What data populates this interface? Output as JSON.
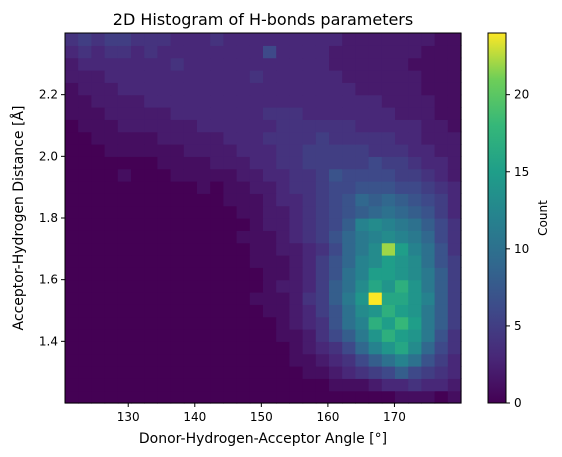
{
  "chart_data": {
    "type": "heatmap",
    "title": "2D Histogram of H-bonds parameters",
    "xlabel": "Donor-Hydrogen-Acceptor Angle [°]",
    "ylabel": "Acceptor-Hydrogen Distance [Å]",
    "xlim": [
      120.5,
      180
    ],
    "ylim": [
      1.2,
      2.4
    ],
    "x_ticks": [
      "130",
      "140",
      "150",
      "160",
      "170"
    ],
    "x_tick_values": [
      130,
      140,
      150,
      160,
      170
    ],
    "y_ticks": [
      "1.4",
      "1.6",
      "1.8",
      "2.0",
      "2.2"
    ],
    "y_tick_values": [
      1.4,
      1.6,
      1.8,
      2.0,
      2.2
    ],
    "colorbar": {
      "label": "Count",
      "range": [
        0,
        24
      ],
      "ticks": [
        "0",
        "5",
        "10",
        "15",
        "20"
      ],
      "tick_values": [
        0,
        5,
        10,
        15,
        20
      ],
      "colormap": "viridis"
    },
    "grid": false,
    "bins_x": 30,
    "bins_y": 30,
    "counts": [
      [
        0,
        0,
        0,
        0,
        0,
        0,
        0,
        0,
        0,
        0,
        0,
        0,
        0,
        0,
        0,
        0,
        0,
        0,
        0,
        0,
        0,
        0,
        0,
        0,
        0,
        1,
        1,
        1,
        0,
        1
      ],
      [
        0,
        0,
        0,
        0,
        0,
        0,
        0,
        0,
        0,
        0,
        0,
        0,
        0,
        0,
        0,
        0,
        0,
        0,
        0,
        0,
        1,
        1,
        1,
        2,
        3,
        3,
        4,
        3,
        3,
        2
      ],
      [
        0,
        0,
        0,
        0,
        0,
        0,
        0,
        0,
        0,
        0,
        0,
        0,
        0,
        0,
        0,
        0,
        0,
        0,
        1,
        1,
        2,
        3,
        4,
        5,
        6,
        8,
        6,
        5,
        4,
        3
      ],
      [
        0,
        0,
        0,
        0,
        0,
        0,
        0,
        0,
        0,
        0,
        0,
        0,
        0,
        0,
        0,
        0,
        0,
        1,
        1,
        2,
        3,
        4,
        6,
        8,
        10,
        12,
        10,
        7,
        5,
        3
      ],
      [
        0,
        0,
        0,
        0,
        0,
        0,
        0,
        0,
        0,
        0,
        0,
        0,
        0,
        0,
        0,
        0,
        0,
        1,
        2,
        3,
        4,
        6,
        9,
        12,
        14,
        16,
        13,
        9,
        6,
        4
      ],
      [
        0,
        0,
        0,
        0,
        0,
        0,
        0,
        0,
        0,
        0,
        0,
        0,
        0,
        0,
        0,
        0,
        1,
        1,
        2,
        4,
        6,
        8,
        11,
        14,
        17,
        15,
        14,
        11,
        7,
        4
      ],
      [
        0,
        0,
        0,
        0,
        0,
        0,
        0,
        0,
        0,
        0,
        0,
        0,
        0,
        0,
        0,
        0,
        1,
        2,
        3,
        4,
        7,
        10,
        12,
        17,
        15,
        18,
        15,
        11,
        8,
        5
      ],
      [
        0,
        0,
        0,
        0,
        0,
        0,
        0,
        0,
        0,
        0,
        0,
        0,
        0,
        0,
        0,
        1,
        1,
        2,
        3,
        5,
        7,
        10,
        13,
        14,
        17,
        15,
        14,
        11,
        8,
        5
      ],
      [
        0,
        0,
        0,
        0,
        0,
        0,
        0,
        0,
        0,
        0,
        0,
        0,
        0,
        0,
        1,
        1,
        1,
        2,
        4,
        5,
        8,
        11,
        14,
        24,
        16,
        16,
        14,
        12,
        8,
        5
      ],
      [
        0,
        0,
        0,
        0,
        0,
        0,
        0,
        0,
        0,
        0,
        0,
        0,
        0,
        0,
        0,
        1,
        2,
        2,
        3,
        5,
        8,
        10,
        13,
        16,
        14,
        17,
        14,
        11,
        8,
        5
      ],
      [
        0,
        0,
        0,
        0,
        0,
        0,
        0,
        0,
        0,
        0,
        0,
        0,
        0,
        0,
        0,
        1,
        1,
        2,
        3,
        5,
        7,
        10,
        12,
        15,
        15,
        14,
        13,
        11,
        8,
        5
      ],
      [
        0,
        0,
        0,
        0,
        0,
        0,
        0,
        0,
        0,
        0,
        0,
        0,
        0,
        0,
        1,
        1,
        1,
        2,
        3,
        5,
        7,
        9,
        12,
        13,
        15,
        14,
        13,
        10,
        7,
        5
      ],
      [
        0,
        0,
        0,
        0,
        0,
        0,
        0,
        0,
        0,
        0,
        0,
        0,
        0,
        0,
        1,
        1,
        2,
        2,
        3,
        4,
        6,
        9,
        11,
        13,
        22,
        15,
        12,
        10,
        7,
        4
      ],
      [
        0,
        0,
        0,
        0,
        0,
        0,
        0,
        0,
        0,
        0,
        0,
        0,
        0,
        1,
        1,
        1,
        2,
        3,
        4,
        5,
        7,
        9,
        11,
        12,
        13,
        12,
        11,
        9,
        6,
        4
      ],
      [
        0,
        0,
        0,
        0,
        0,
        0,
        0,
        0,
        0,
        0,
        0,
        0,
        0,
        0,
        1,
        2,
        2,
        3,
        4,
        5,
        6,
        8,
        12,
        13,
        12,
        11,
        10,
        8,
        6,
        4
      ],
      [
        0,
        0,
        0,
        0,
        0,
        0,
        0,
        0,
        0,
        0,
        0,
        0,
        0,
        1,
        1,
        2,
        2,
        3,
        4,
        5,
        6,
        7,
        8,
        9,
        10,
        9,
        8,
        7,
        5,
        3
      ],
      [
        0,
        0,
        0,
        0,
        0,
        0,
        0,
        0,
        0,
        0,
        0,
        0,
        1,
        1,
        1,
        2,
        3,
        3,
        4,
        5,
        6,
        7,
        9,
        8,
        9,
        8,
        7,
        6,
        5,
        3
      ],
      [
        0,
        0,
        0,
        0,
        0,
        0,
        0,
        0,
        0,
        0,
        1,
        0,
        1,
        1,
        2,
        2,
        3,
        4,
        4,
        5,
        6,
        6,
        7,
        7,
        7,
        6,
        6,
        5,
        4,
        3
      ],
      [
        0,
        0,
        0,
        0,
        1,
        0,
        0,
        0,
        1,
        1,
        1,
        1,
        1,
        2,
        2,
        3,
        3,
        4,
        4,
        5,
        7,
        6,
        6,
        6,
        6,
        5,
        5,
        4,
        3,
        2
      ],
      [
        0,
        0,
        0,
        0,
        0,
        0,
        0,
        1,
        1,
        1,
        1,
        2,
        2,
        2,
        3,
        3,
        4,
        4,
        5,
        5,
        5,
        5,
        5,
        6,
        5,
        5,
        4,
        3,
        3,
        2
      ],
      [
        0,
        0,
        0,
        1,
        1,
        1,
        1,
        1,
        1,
        2,
        2,
        2,
        2,
        3,
        3,
        3,
        4,
        4,
        5,
        5,
        5,
        5,
        5,
        4,
        4,
        4,
        3,
        3,
        2,
        2
      ],
      [
        0,
        0,
        1,
        1,
        1,
        1,
        1,
        2,
        2,
        2,
        2,
        2,
        3,
        3,
        3,
        4,
        4,
        4,
        4,
        5,
        4,
        4,
        4,
        4,
        4,
        3,
        3,
        2,
        2,
        2
      ],
      [
        0,
        1,
        1,
        1,
        2,
        2,
        2,
        2,
        2,
        2,
        3,
        3,
        3,
        3,
        3,
        3,
        4,
        4,
        4,
        4,
        4,
        4,
        3,
        3,
        3,
        3,
        3,
        2,
        2,
        1
      ],
      [
        1,
        1,
        1,
        2,
        2,
        2,
        2,
        2,
        3,
        3,
        3,
        3,
        3,
        3,
        3,
        4,
        4,
        4,
        3,
        3,
        3,
        3,
        3,
        3,
        3,
        2,
        2,
        2,
        1,
        1
      ],
      [
        1,
        1,
        2,
        2,
        2,
        2,
        3,
        3,
        3,
        3,
        3,
        3,
        3,
        3,
        3,
        3,
        3,
        3,
        3,
        3,
        3,
        3,
        3,
        3,
        2,
        2,
        2,
        2,
        1,
        1
      ],
      [
        1,
        2,
        2,
        2,
        3,
        3,
        3,
        3,
        3,
        3,
        3,
        3,
        3,
        3,
        3,
        3,
        3,
        3,
        3,
        3,
        3,
        3,
        2,
        2,
        2,
        2,
        2,
        1,
        1,
        1
      ],
      [
        2,
        2,
        2,
        3,
        3,
        3,
        3,
        3,
        3,
        3,
        3,
        3,
        3,
        3,
        4,
        3,
        3,
        3,
        3,
        3,
        3,
        2,
        2,
        2,
        2,
        2,
        2,
        1,
        1,
        1
      ],
      [
        2,
        3,
        3,
        3,
        3,
        3,
        3,
        3,
        4,
        3,
        3,
        3,
        3,
        3,
        3,
        3,
        3,
        3,
        3,
        3,
        2,
        2,
        2,
        2,
        2,
        2,
        1,
        1,
        1,
        1
      ],
      [
        3,
        4,
        3,
        4,
        4,
        3,
        4,
        3,
        3,
        3,
        3,
        3,
        3,
        3,
        3,
        6,
        3,
        3,
        3,
        3,
        2,
        2,
        2,
        2,
        2,
        2,
        2,
        1,
        1,
        1
      ],
      [
        4,
        5,
        4,
        5,
        5,
        4,
        4,
        4,
        3,
        3,
        3,
        4,
        3,
        3,
        3,
        3,
        3,
        3,
        3,
        3,
        3,
        2,
        2,
        2,
        2,
        2,
        2,
        2,
        1,
        1
      ]
    ]
  }
}
